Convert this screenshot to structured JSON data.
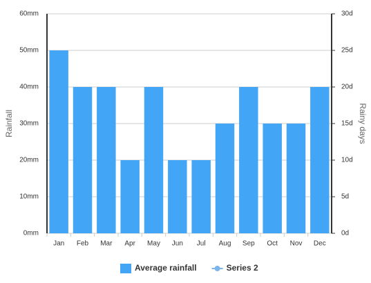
{
  "chart_data": {
    "type": "bar",
    "categories": [
      "Jan",
      "Feb",
      "Mar",
      "Apr",
      "May",
      "Jun",
      "Jul",
      "Aug",
      "Sep",
      "Oct",
      "Nov",
      "Dec"
    ],
    "series": [
      {
        "name": "Average rainfall",
        "color": "#42a5f5",
        "values": [
          50,
          40,
          40,
          20,
          40,
          20,
          20,
          30,
          40,
          30,
          30,
          40
        ]
      },
      {
        "name": "Series 2",
        "color": "#7cb5ec",
        "axis": "y2",
        "values": [
          null,
          null,
          null,
          null,
          null,
          null,
          null,
          null,
          null,
          null,
          null,
          null
        ]
      }
    ],
    "ylabel": "Rainfall",
    "y2label": "Rainy days",
    "ylim": [
      0,
      60
    ],
    "yticks": [
      {
        "value": 0,
        "label": "0mm"
      },
      {
        "value": 10,
        "label": "10mm"
      },
      {
        "value": 20,
        "label": "20mm"
      },
      {
        "value": 30,
        "label": "30mm"
      },
      {
        "value": 40,
        "label": "40mm"
      },
      {
        "value": 50,
        "label": "50mm"
      },
      {
        "value": 60,
        "label": "60mm"
      }
    ],
    "y2lim": [
      0,
      30
    ],
    "y2ticks": [
      {
        "value": 0,
        "label": "0d"
      },
      {
        "value": 5,
        "label": "5d"
      },
      {
        "value": 10,
        "label": "10d"
      },
      {
        "value": 15,
        "label": "15d"
      },
      {
        "value": 20,
        "label": "20d"
      },
      {
        "value": 25,
        "label": "25d"
      },
      {
        "value": 30,
        "label": "30d"
      }
    ],
    "grid": true,
    "legend": "bottom"
  }
}
